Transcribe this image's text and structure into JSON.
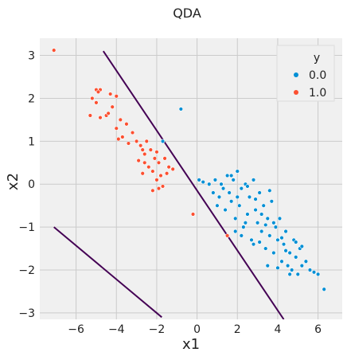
{
  "chart_data": {
    "type": "scatter",
    "title": "QDA",
    "xlabel": "x1",
    "ylabel": "x2",
    "xlim": [
      -7.8,
      7.2
    ],
    "ylim": [
      -3.15,
      3.4
    ],
    "xticks": [
      -6,
      -4,
      -2,
      0,
      2,
      4,
      6
    ],
    "yticks": [
      -3,
      -2,
      -1,
      0,
      1,
      2,
      3
    ],
    "xtick_labels": [
      "−6",
      "−4",
      "−2",
      "0",
      "2",
      "4",
      "6"
    ],
    "ytick_labels": [
      "−3",
      "−2",
      "−1",
      "0",
      "1",
      "2",
      "3"
    ],
    "grid": true,
    "legend": {
      "title": "y",
      "placement": "top-right",
      "entries": [
        "0.0",
        "1.0"
      ]
    },
    "colors": {
      "series_0": "#008fd5",
      "series_1": "#fc4f30",
      "boundary": "#440154",
      "background": "#f0f0f0",
      "grid": "#cbcbcb",
      "legend_bg": "#f0f0f0"
    },
    "series": [
      {
        "name": "0.0",
        "points": [
          [
            -0.8,
            1.75
          ],
          [
            -1.7,
            1.0
          ],
          [
            0.1,
            0.1
          ],
          [
            0.3,
            0.05
          ],
          [
            0.6,
            0.0
          ],
          [
            0.8,
            -0.2
          ],
          [
            0.9,
            0.1
          ],
          [
            1.0,
            -0.5
          ],
          [
            1.1,
            -0.3
          ],
          [
            1.2,
            0.0
          ],
          [
            1.3,
            -0.1
          ],
          [
            1.4,
            -0.6
          ],
          [
            1.5,
            0.2
          ],
          [
            1.6,
            -0.2
          ],
          [
            1.7,
            -0.4
          ],
          [
            1.8,
            0.1
          ],
          [
            1.9,
            -0.8
          ],
          [
            2.0,
            0.3
          ],
          [
            2.1,
            -0.5
          ],
          [
            2.2,
            -0.1
          ],
          [
            2.3,
            -1.0
          ],
          [
            2.4,
            0.0
          ],
          [
            2.5,
            -0.7
          ],
          [
            2.6,
            -0.3
          ],
          [
            2.7,
            -1.3
          ],
          [
            2.8,
            0.1
          ],
          [
            2.9,
            -0.6
          ],
          [
            3.0,
            -0.9
          ],
          [
            3.1,
            -0.2
          ],
          [
            3.2,
            -1.1
          ],
          [
            3.3,
            -0.5
          ],
          [
            3.4,
            -1.5
          ],
          [
            3.5,
            -0.8
          ],
          [
            3.6,
            -1.2
          ],
          [
            3.7,
            -0.4
          ],
          [
            3.8,
            -1.6
          ],
          [
            3.9,
            -1.0
          ],
          [
            4.0,
            -1.3
          ],
          [
            4.1,
            -0.8
          ],
          [
            4.2,
            -1.8
          ],
          [
            4.3,
            -1.4
          ],
          [
            4.4,
            -1.1
          ],
          [
            4.5,
            -1.9
          ],
          [
            4.6,
            -1.6
          ],
          [
            4.7,
            -2.0
          ],
          [
            4.8,
            -1.3
          ],
          [
            4.9,
            -1.7
          ],
          [
            5.0,
            -2.1
          ],
          [
            5.1,
            -1.5
          ],
          [
            5.2,
            -1.9
          ],
          [
            5.4,
            -1.8
          ],
          [
            5.6,
            -2.0
          ],
          [
            5.8,
            -2.05
          ],
          [
            6.0,
            -2.1
          ],
          [
            6.3,
            -2.45
          ],
          [
            1.9,
            -1.1
          ],
          [
            2.2,
            -1.2
          ],
          [
            2.5,
            -0.05
          ],
          [
            2.8,
            -1.4
          ],
          [
            3.1,
            -1.35
          ],
          [
            3.4,
            -0.95
          ],
          [
            3.6,
            -0.15
          ],
          [
            4.0,
            -1.95
          ],
          [
            4.4,
            -1.55
          ],
          [
            4.9,
            -1.35
          ],
          [
            2.0,
            -0.3
          ],
          [
            2.4,
            -0.9
          ],
          [
            3.2,
            -0.7
          ],
          [
            3.8,
            -0.9
          ],
          [
            4.6,
            -2.1
          ],
          [
            5.2,
            -1.45
          ],
          [
            1.7,
            0.2
          ],
          [
            2.9,
            -0.35
          ],
          [
            3.5,
            -1.9
          ],
          [
            4.2,
            -1.25
          ]
        ]
      },
      {
        "name": "1.0",
        "points": [
          [
            -7.1,
            3.12
          ],
          [
            -5.0,
            2.2
          ],
          [
            -4.8,
            2.2
          ],
          [
            -4.9,
            2.15
          ],
          [
            -4.3,
            2.1
          ],
          [
            -4.0,
            2.05
          ],
          [
            -5.2,
            2.0
          ],
          [
            -5.0,
            1.9
          ],
          [
            -4.2,
            1.8
          ],
          [
            -4.5,
            1.6
          ],
          [
            -4.8,
            1.55
          ],
          [
            -5.3,
            1.6
          ],
          [
            -3.8,
            1.5
          ],
          [
            -3.5,
            1.4
          ],
          [
            -4.0,
            1.3
          ],
          [
            -3.7,
            1.1
          ],
          [
            -3.2,
            1.2
          ],
          [
            -3.0,
            1.0
          ],
          [
            -2.8,
            0.9
          ],
          [
            -2.5,
            1.0
          ],
          [
            -2.3,
            0.8
          ],
          [
            -2.6,
            0.7
          ],
          [
            -2.1,
            0.6
          ],
          [
            -1.9,
            0.5
          ],
          [
            -2.4,
            0.4
          ],
          [
            -2.2,
            0.3
          ],
          [
            -1.8,
            0.2
          ],
          [
            -2.0,
            0.1
          ],
          [
            -1.7,
            -0.05
          ],
          [
            -1.5,
            0.25
          ],
          [
            -1.9,
            -0.1
          ],
          [
            -2.2,
            -0.15
          ],
          [
            -2.6,
            0.5
          ],
          [
            -2.9,
            0.55
          ],
          [
            -3.4,
            0.95
          ],
          [
            -1.6,
            0.6
          ],
          [
            -1.2,
            0.35
          ],
          [
            -0.2,
            -0.7
          ],
          [
            1.5,
            -1.2
          ],
          [
            -2.7,
            0.8
          ],
          [
            -3.9,
            1.05
          ],
          [
            -4.4,
            1.65
          ],
          [
            -2.0,
            0.75
          ],
          [
            -1.4,
            0.4
          ],
          [
            -2.7,
            0.25
          ]
        ]
      }
    ],
    "boundaries": [
      {
        "name": "",
        "x": [
          -4.65,
          4.3
        ],
        "y": [
          3.1,
          -3.15
        ]
      },
      {
        "name": "",
        "x": [
          -7.1,
          -1.75
        ],
        "y": [
          -1.0,
          -3.1
        ]
      }
    ]
  }
}
